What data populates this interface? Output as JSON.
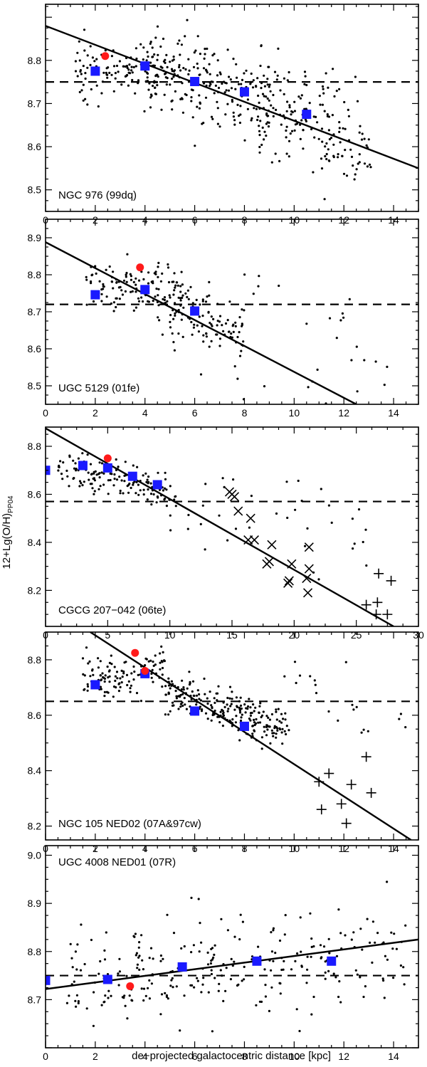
{
  "figure": {
    "ylabel": "12+Lg(O/H)",
    "ylabel_sub": "PP04",
    "xlabel": "de−projected galactocentric distance [kpc]"
  },
  "chart_data": [
    {
      "type": "scatter",
      "label": "NGC 976 (99dq)",
      "label_pos": "bottom-left",
      "xlim": [
        0,
        15
      ],
      "ylim": [
        8.45,
        8.93
      ],
      "xticks": [
        0,
        2,
        4,
        6,
        8,
        10,
        12,
        14
      ],
      "yticks": [
        8.5,
        8.6,
        8.7,
        8.8
      ],
      "xtick_labels": [
        "0",
        "2",
        "4",
        "6",
        "8",
        "10",
        "12",
        "14"
      ],
      "ytick_labels": [
        "8.5",
        "8.6",
        "8.7",
        "8.8"
      ],
      "fit_line": [
        [
          0,
          8.88
        ],
        [
          15,
          8.55
        ]
      ],
      "mean_level": 8.75,
      "binned_means": [
        [
          2,
          8.775
        ],
        [
          4,
          8.787
        ],
        [
          6,
          8.751
        ],
        [
          8,
          8.727
        ],
        [
          10.5,
          8.675
        ]
      ],
      "sn_points": [
        [
          2.4,
          8.81
        ]
      ],
      "cloud": [
        {
          "x0": 1.2,
          "x1": 4.5,
          "n": 110,
          "ymean": [
            8.77,
            8.79
          ],
          "sd": 0.03
        },
        {
          "x0": 4.0,
          "x1": 9.0,
          "n": 220,
          "ymean": [
            8.79,
            8.7
          ],
          "sd": 0.045
        },
        {
          "x0": 8.5,
          "x1": 13.1,
          "n": 170,
          "ymean": [
            8.71,
            8.6
          ],
          "sd": 0.06
        }
      ]
    },
    {
      "type": "scatter",
      "label": "UGC 5129 (01fe)",
      "label_pos": "bottom-left",
      "xlim": [
        0,
        15
      ],
      "ylim": [
        8.45,
        8.95
      ],
      "xticks": [
        0,
        2,
        4,
        6,
        8,
        10,
        12,
        14
      ],
      "yticks": [
        8.5,
        8.6,
        8.7,
        8.8,
        8.9
      ],
      "xtick_labels": [
        "0",
        "2",
        "4",
        "6",
        "8",
        "10",
        "12",
        "14"
      ],
      "ytick_labels": [
        "8.5",
        "8.6",
        "8.7",
        "8.8",
        "8.9"
      ],
      "fit_line": [
        [
          0,
          8.888
        ],
        [
          12.5,
          8.45
        ]
      ],
      "mean_level": 8.72,
      "binned_means": [
        [
          2,
          8.746
        ],
        [
          4,
          8.76
        ],
        [
          6,
          8.702
        ]
      ],
      "sn_points": [
        [
          3.8,
          8.82
        ]
      ],
      "cloud": [
        {
          "x0": 1.5,
          "x1": 4.5,
          "n": 90,
          "ymean": [
            8.79,
            8.76
          ],
          "sd": 0.035
        },
        {
          "x0": 4.5,
          "x1": 8.0,
          "n": 150,
          "ymean": [
            8.75,
            8.64
          ],
          "sd": 0.05
        },
        {
          "x0": 8.0,
          "x1": 13.8,
          "n": 24,
          "ymean": [
            8.7,
            8.62
          ],
          "sd": 0.1
        }
      ]
    },
    {
      "type": "scatter",
      "label": "CGCG 207−042 (06te)",
      "label_pos": "bottom-left",
      "xlim": [
        0,
        30
      ],
      "ylim": [
        8.05,
        8.88
      ],
      "xticks": [
        0,
        5,
        10,
        15,
        20,
        25,
        30
      ],
      "yticks": [
        8.2,
        8.4,
        8.6,
        8.8
      ],
      "xtick_labels": [
        "0",
        "5",
        "10",
        "15",
        "20",
        "25",
        "30"
      ],
      "ytick_labels": [
        "8.2",
        "8.4",
        "8.6",
        "8.8"
      ],
      "fit_line": [
        [
          0,
          8.875
        ],
        [
          28,
          8.05
        ]
      ],
      "mean_level": 8.57,
      "binned_means": [
        [
          0,
          8.7
        ],
        [
          3,
          8.72
        ],
        [
          5,
          8.71
        ],
        [
          7,
          8.675
        ],
        [
          9,
          8.64
        ]
      ],
      "sn_points": [
        [
          5,
          8.75
        ]
      ],
      "x_markers": [
        [
          14.8,
          8.61
        ],
        [
          15.0,
          8.6
        ],
        [
          15.2,
          8.59
        ],
        [
          15.5,
          8.53
        ],
        [
          16.5,
          8.5
        ],
        [
          16.3,
          8.41
        ],
        [
          16.8,
          8.41
        ],
        [
          18.2,
          8.39
        ],
        [
          18.0,
          8.32
        ],
        [
          17.8,
          8.31
        ],
        [
          19.8,
          8.31
        ],
        [
          19.6,
          8.24
        ],
        [
          19.5,
          8.23
        ],
        [
          21.2,
          8.38
        ],
        [
          21.2,
          8.29
        ],
        [
          21.0,
          8.25
        ],
        [
          21.1,
          8.19
        ]
      ],
      "plus_markers": [
        [
          25.8,
          8.14
        ],
        [
          26.8,
          8.27
        ],
        [
          26.7,
          8.15
        ],
        [
          26.6,
          8.1
        ],
        [
          27.8,
          8.24
        ],
        [
          27.5,
          8.1
        ]
      ],
      "cloud": [
        {
          "x0": 1.0,
          "x1": 10.5,
          "n": 150,
          "ymean": [
            8.72,
            8.6
          ],
          "sd": 0.04
        },
        {
          "x0": 10.0,
          "x1": 26.0,
          "n": 35,
          "ymean": [
            8.55,
            8.45
          ],
          "sd": 0.1
        }
      ]
    },
    {
      "type": "scatter",
      "label": "NGC 105 NED02 (07A&97cw)",
      "label_pos": "bottom-left",
      "xlim": [
        0,
        15
      ],
      "ylim": [
        8.15,
        8.9
      ],
      "xticks": [
        0,
        2,
        4,
        6,
        8,
        10,
        12,
        14
      ],
      "yticks": [
        8.2,
        8.4,
        8.6,
        8.8
      ],
      "xtick_labels": [
        "0",
        "2",
        "4",
        "6",
        "8",
        "10",
        "12",
        "14"
      ],
      "ytick_labels": [
        "8.2",
        "8.4",
        "8.6",
        "8.8"
      ],
      "fit_line": [
        [
          1.8,
          8.9
        ],
        [
          14.7,
          8.15
        ]
      ],
      "mean_level": 8.65,
      "binned_means": [
        [
          2,
          8.71
        ],
        [
          4,
          8.75
        ],
        [
          6,
          8.615
        ],
        [
          8,
          8.56
        ]
      ],
      "sn_points": [
        [
          3.6,
          8.825
        ],
        [
          4.0,
          8.76
        ]
      ],
      "plus_markers": [
        [
          11.0,
          8.36
        ],
        [
          11.4,
          8.39
        ],
        [
          11.1,
          8.26
        ],
        [
          11.9,
          8.28
        ],
        [
          12.3,
          8.35
        ],
        [
          12.1,
          8.21
        ],
        [
          12.9,
          8.45
        ],
        [
          13.1,
          8.32
        ]
      ],
      "cloud": [
        {
          "x0": 1.5,
          "x1": 4.8,
          "n": 110,
          "ymean": [
            8.74,
            8.76
          ],
          "sd": 0.04
        },
        {
          "x0": 4.8,
          "x1": 9.8,
          "n": 230,
          "ymean": [
            8.7,
            8.54
          ],
          "sd": 0.04
        },
        {
          "x0": 9.5,
          "x1": 14.8,
          "n": 20,
          "ymean": [
            8.72,
            8.65
          ],
          "sd": 0.08
        }
      ]
    },
    {
      "type": "scatter",
      "label": "UGC 4008 NED01 (07R)",
      "label_pos": "top-left",
      "xlim": [
        0,
        15
      ],
      "ylim": [
        8.6,
        9.02
      ],
      "xticks": [
        0,
        2,
        4,
        6,
        8,
        10,
        12,
        14
      ],
      "yticks": [
        8.7,
        8.8,
        8.9,
        9.0
      ],
      "xtick_labels": [
        "0",
        "2",
        "4",
        "6",
        "8",
        "10",
        "12",
        "14"
      ],
      "ytick_labels": [
        "8.7",
        "8.8",
        "8.9",
        "9.0"
      ],
      "fit_line": [
        [
          0,
          8.722
        ],
        [
          15,
          8.825
        ]
      ],
      "mean_level": 8.75,
      "binned_means": [
        [
          0,
          8.74
        ],
        [
          2.5,
          8.742
        ],
        [
          5.5,
          8.768
        ],
        [
          8.5,
          8.78
        ],
        [
          11.5,
          8.78
        ]
      ],
      "sn_points": [
        [
          3.4,
          8.728
        ]
      ],
      "cloud": [
        {
          "x0": 0.8,
          "x1": 14.5,
          "n": 260,
          "ymean": [
            8.73,
            8.81
          ],
          "sd": 0.045
        }
      ]
    }
  ]
}
